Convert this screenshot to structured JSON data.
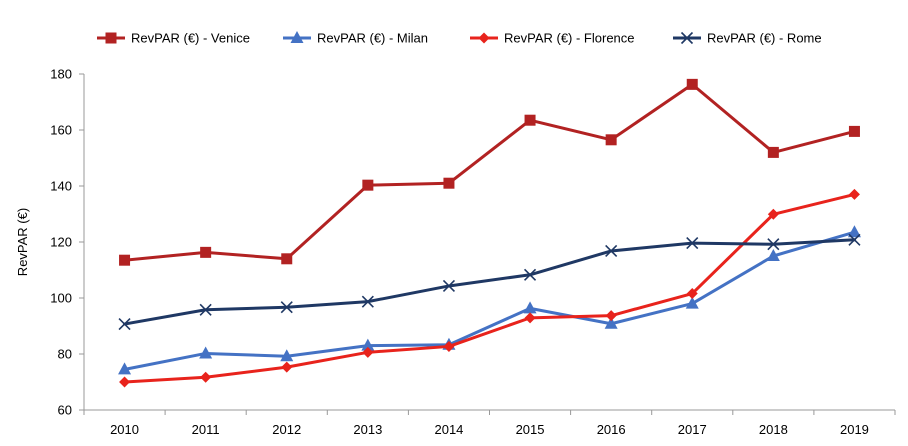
{
  "chart_data": {
    "type": "line",
    "title": "",
    "xlabel": "",
    "ylabel": "RevPAR (€)",
    "x": [
      "2010",
      "2011",
      "2012",
      "2013",
      "2014",
      "2015",
      "2016",
      "2017",
      "2018",
      "2019"
    ],
    "ylim": [
      60,
      180
    ],
    "yticks": [
      60,
      80,
      100,
      120,
      140,
      160,
      180
    ],
    "grid": false,
    "legend_position": "top",
    "series": [
      {
        "name": "RevPAR (€) - Venice",
        "color": "#B22222",
        "marker": "square",
        "values": [
          113.5,
          116.3,
          114.0,
          140.3,
          141.0,
          163.5,
          156.5,
          176.3,
          152.0,
          159.5
        ]
      },
      {
        "name": "RevPAR (€) - Milan",
        "color": "#4472C4",
        "marker": "triangle",
        "values": [
          74.5,
          80.2,
          79.2,
          83.0,
          83.3,
          96.3,
          90.8,
          98.0,
          115.0,
          123.5
        ]
      },
      {
        "name": "RevPAR (€) - Florence",
        "color": "#E8231C",
        "marker": "diamond",
        "values": [
          70.0,
          71.7,
          75.3,
          80.6,
          82.7,
          92.9,
          93.7,
          101.6,
          129.9,
          137.0
        ]
      },
      {
        "name": "RevPAR (€) - Rome",
        "color": "#1F3864",
        "marker": "x",
        "values": [
          90.7,
          95.8,
          96.7,
          98.7,
          104.3,
          108.3,
          116.8,
          119.6,
          119.2,
          120.8
        ]
      }
    ]
  }
}
